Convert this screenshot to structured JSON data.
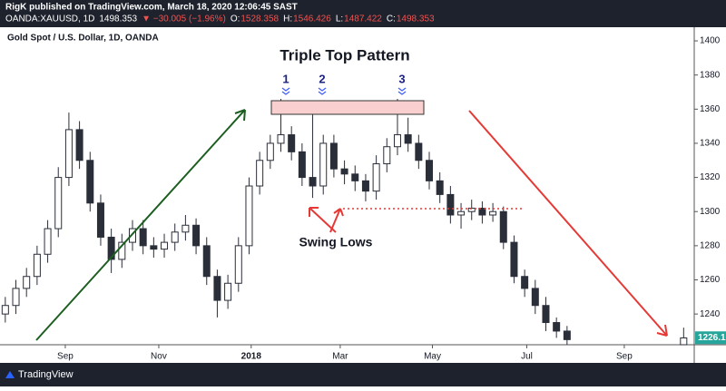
{
  "header": {
    "publisher": "RigK published on TradingView.com, March 18, 2020 12:06:45 SAST",
    "symbol": "OANDA:XAUUSD, 1D",
    "last": "1498.353",
    "change": "▼ −30.005 (−1.96%)",
    "open_label": "O:",
    "open": "1528.358",
    "high_label": "H:",
    "high": "1546.426",
    "low_label": "L:",
    "low": "1487.422",
    "close_label": "C:",
    "close": "1498.353"
  },
  "footer": {
    "brand": "TradingView"
  },
  "chart_data": {
    "type": "candlestick",
    "title": "Triple Top Pattern",
    "subtitle": "Gold Spot / U.S. Dollar, 1D, OANDA",
    "annotations": [
      "1",
      "2",
      "3",
      "Swing Lows"
    ],
    "last_price": 1226.1,
    "categories": [
      null,
      null,
      null,
      null,
      null,
      null,
      null,
      null,
      null,
      null,
      null,
      null,
      null,
      null,
      null,
      null,
      null,
      null,
      null,
      null,
      null,
      null,
      null,
      null,
      null,
      null,
      null,
      null,
      null,
      null,
      null,
      null,
      null,
      null,
      null,
      null,
      null,
      null,
      null,
      null,
      null,
      null,
      null,
      null,
      null,
      null,
      null,
      null,
      null,
      null,
      null,
      null,
      null,
      null,
      null,
      null,
      null,
      null,
      null,
      null,
      null,
      null,
      null,
      null,
      null
    ],
    "open": [
      1240,
      1245,
      1255,
      1262,
      1275,
      1290,
      1320,
      1348,
      1330,
      1305,
      1285,
      1272,
      1282,
      1290,
      1280,
      1278,
      1282,
      1288,
      1292,
      1280,
      1262,
      1248,
      1258,
      1280,
      1315,
      1330,
      1340,
      1345,
      1335,
      1320,
      1315,
      1340,
      1325,
      1322,
      1318,
      1312,
      1328,
      1338,
      1345,
      1340,
      1330,
      1318,
      1310,
      1298,
      1300,
      1302,
      1298,
      1300,
      1282,
      1262,
      1255,
      1245,
      1235,
      1230,
      null,
      null,
      null,
      null,
      null,
      null,
      null,
      null,
      null,
      null,
      1222
    ],
    "high": [
      1250,
      1260,
      1267,
      1280,
      1295,
      1326,
      1358,
      1353,
      1335,
      1310,
      1290,
      1287,
      1295,
      1295,
      1285,
      1287,
      1293,
      1298,
      1296,
      1285,
      1266,
      1263,
      1285,
      1320,
      1335,
      1345,
      1366,
      1350,
      1340,
      1362,
      1345,
      1345,
      1330,
      1327,
      1322,
      1333,
      1343,
      1366,
      1355,
      1345,
      1335,
      1323,
      1315,
      1305,
      1307,
      1306,
      1305,
      1303,
      1286,
      1266,
      1260,
      1250,
      1238,
      1233,
      null,
      null,
      null,
      null,
      null,
      null,
      null,
      null,
      null,
      null,
      1232
    ],
    "low": [
      1235,
      1240,
      1250,
      1257,
      1270,
      1285,
      1315,
      1325,
      1300,
      1280,
      1264,
      1267,
      1277,
      1275,
      1273,
      1273,
      1277,
      1283,
      1275,
      1257,
      1238,
      1243,
      1253,
      1275,
      1310,
      1325,
      1335,
      1330,
      1315,
      1308,
      1310,
      1320,
      1316,
      1312,
      1306,
      1307,
      1323,
      1333,
      1335,
      1325,
      1313,
      1305,
      1293,
      1290,
      1295,
      1293,
      1294,
      1278,
      1258,
      1250,
      1240,
      1230,
      1226,
      1222,
      null,
      null,
      null,
      null,
      null,
      null,
      null,
      null,
      null,
      null,
      1222
    ],
    "close": [
      1245,
      1255,
      1262,
      1275,
      1290,
      1320,
      1348,
      1330,
      1305,
      1285,
      1272,
      1282,
      1290,
      1280,
      1278,
      1282,
      1288,
      1292,
      1280,
      1262,
      1248,
      1258,
      1280,
      1315,
      1330,
      1340,
      1345,
      1335,
      1320,
      1315,
      1340,
      1325,
      1322,
      1318,
      1312,
      1328,
      1338,
      1345,
      1340,
      1330,
      1318,
      1310,
      1298,
      1300,
      1302,
      1298,
      1300,
      1282,
      1262,
      1255,
      1245,
      1235,
      1230,
      1225,
      null,
      null,
      null,
      null,
      null,
      null,
      null,
      null,
      null,
      null,
      1226
    ],
    "up_color": "#ffffff",
    "down_color": "#2a2e39",
    "outline_color": "#2a2e39",
    "xlim": [
      -0.5,
      65
    ],
    "xticks": [
      {
        "value": 5.66,
        "label": "Sep"
      },
      {
        "value": 14.48,
        "label": "Nov"
      },
      {
        "value": 23.2,
        "label": "2018"
      },
      {
        "value": 31.6,
        "label": "Mar"
      },
      {
        "value": 40.3,
        "label": "May"
      },
      {
        "value": 49.2,
        "label": "Jul"
      },
      {
        "value": 58.4,
        "label": "Sep"
      }
    ],
    "ylim": [
      1222,
      1408
    ],
    "yticks": [
      1240,
      1260,
      1280,
      1300,
      1320,
      1340,
      1360,
      1380,
      1400
    ],
    "grid": false
  }
}
